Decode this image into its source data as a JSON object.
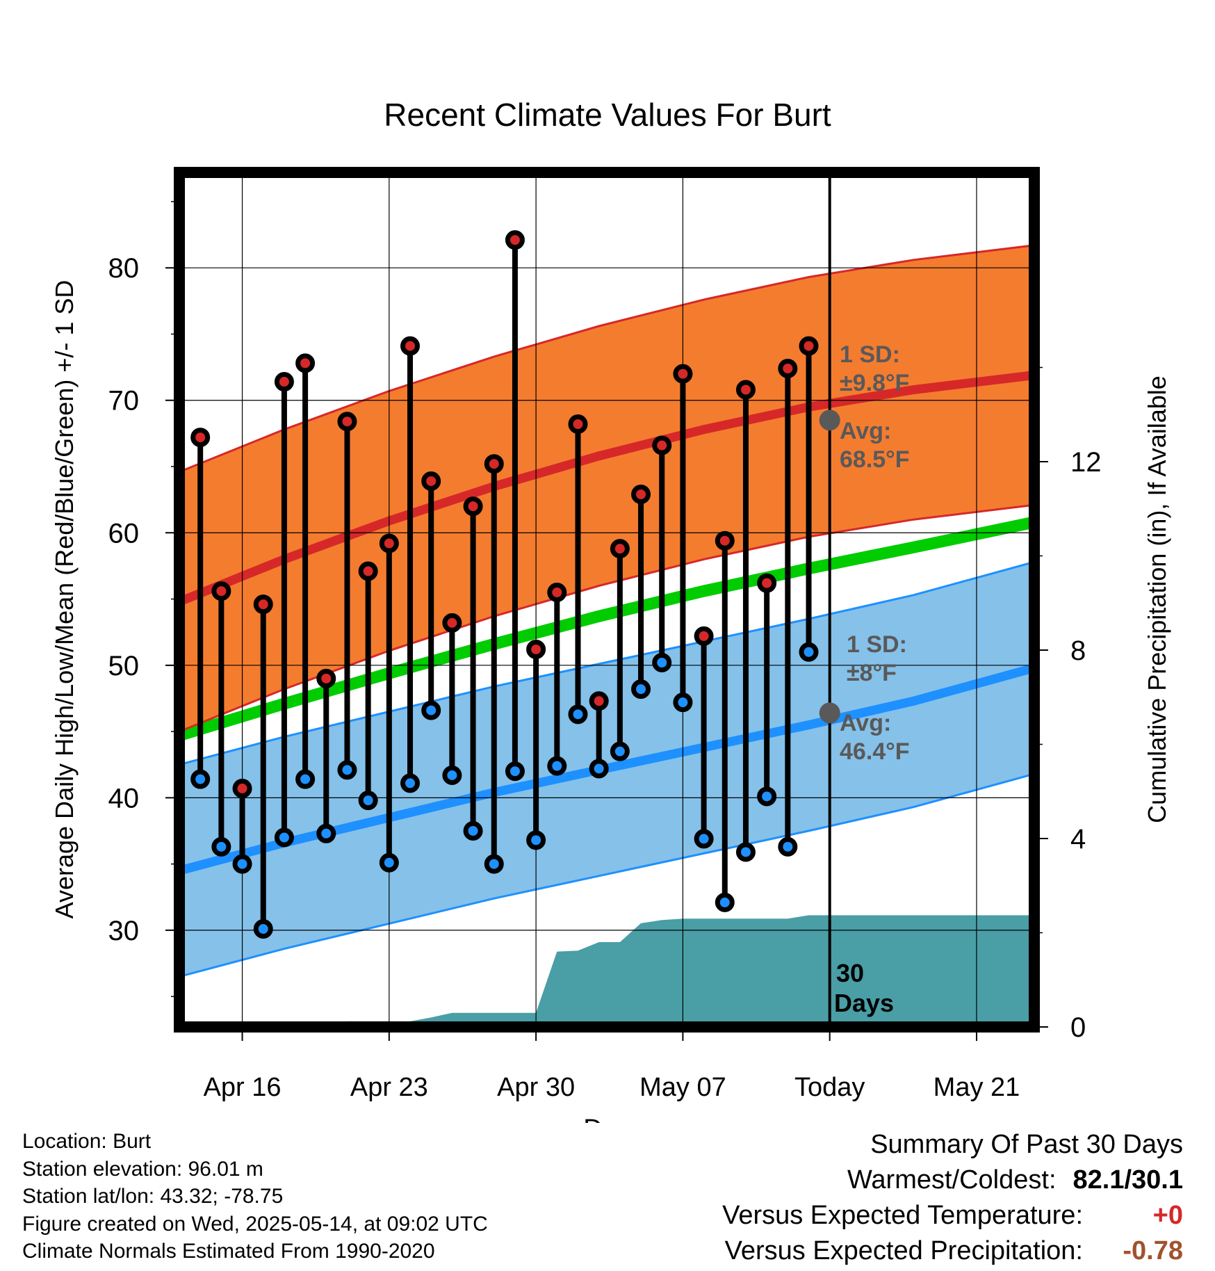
{
  "chart_data": {
    "type": "line",
    "title": "Recent Climate Values For Burt",
    "xlabel": "Day",
    "ylabel": "Average Daily High/Low/Mean (Red/Blue/Green) +/- 1 SD",
    "y2label": "Cumulative Precipitation (in), If Available",
    "x_tick_labels": [
      "Apr 16",
      "Apr 23",
      "Apr 30",
      "May 07",
      "Today",
      "May 21"
    ],
    "x_tick_days": [
      3,
      10,
      17,
      24,
      31,
      38
    ],
    "xlim_days": [
      0,
      40.75
    ],
    "ylim": [
      22.7,
      87.2
    ],
    "y_ticks": [
      30,
      40,
      50,
      60,
      70,
      80
    ],
    "y2lim": [
      0,
      18.14
    ],
    "y2_ticks": [
      0,
      4,
      8,
      12
    ],
    "grid": true,
    "today_day": 31,
    "daily_observations": {
      "day": [
        1,
        2,
        3,
        4,
        5,
        6,
        7,
        8,
        9,
        10,
        11,
        12,
        13,
        14,
        15,
        16,
        17,
        18,
        19,
        20,
        21,
        22,
        23,
        24,
        25,
        26,
        27,
        28,
        29,
        30
      ],
      "high": [
        67.2,
        55.6,
        40.7,
        54.6,
        71.4,
        72.8,
        49.0,
        68.4,
        57.1,
        59.2,
        74.1,
        63.9,
        53.2,
        62.0,
        65.2,
        82.1,
        51.2,
        55.5,
        68.2,
        47.3,
        58.8,
        62.9,
        66.6,
        72.0,
        52.2,
        59.4,
        70.8,
        56.2,
        72.4,
        74.1
      ],
      "low": [
        41.4,
        36.3,
        35.0,
        30.1,
        37.0,
        41.4,
        37.3,
        42.1,
        39.8,
        35.1,
        41.1,
        46.6,
        41.7,
        37.5,
        35.0,
        42.0,
        36.8,
        42.4,
        46.3,
        42.2,
        43.5,
        48.2,
        50.2,
        47.2,
        36.9,
        32.1,
        35.9,
        40.1,
        36.3,
        51.0
      ]
    },
    "normals": {
      "day": [
        0,
        5,
        10,
        15,
        20,
        25,
        30,
        35,
        40.75
      ],
      "mean": [
        44.7,
        47.1,
        49.4,
        51.6,
        53.7,
        55.6,
        57.3,
        58.9,
        60.8
      ],
      "high_avg": [
        54.8,
        58.0,
        60.9,
        63.5,
        65.8,
        67.8,
        69.5,
        70.8,
        71.9
      ],
      "high_sd": [
        9.8,
        9.8,
        9.8,
        9.8,
        9.8,
        9.8,
        9.8,
        9.8,
        9.8
      ],
      "low_avg": [
        34.5,
        36.6,
        38.5,
        40.4,
        42.1,
        43.8,
        45.5,
        47.3,
        49.8
      ],
      "low_sd": [
        8.0,
        8.0,
        8.0,
        8.0,
        8.0,
        8.0,
        8.0,
        8.0,
        8.0
      ]
    },
    "cumulative_precipitation": {
      "day": [
        0,
        6,
        7,
        8,
        11,
        12,
        13,
        17,
        18,
        19,
        20,
        21,
        22,
        23,
        24,
        29,
        30,
        40.75
      ],
      "inches": [
        0,
        0,
        0.05,
        0.12,
        0.12,
        0.2,
        0.3,
        0.3,
        1.6,
        1.62,
        1.8,
        1.8,
        2.2,
        2.27,
        2.3,
        2.3,
        2.37,
        2.37
      ]
    },
    "annotations": {
      "high_sd_label": "1 SD:",
      "high_sd_value": "±9.8°F",
      "high_avg_label": "Avg:",
      "high_avg_value": "68.5°F",
      "low_sd_label": "1 SD:",
      "low_sd_value": "±8°F",
      "low_avg_label": "Avg:",
      "low_avg_value": "46.4°F",
      "days_number": "30",
      "days_word": "Days"
    },
    "today_avg_high": 68.5,
    "today_avg_low": 46.4,
    "colors": {
      "high_band": "#f47c2f",
      "high_line": "#d62828",
      "low_band": "#85c1e9",
      "low_line": "#1e90ff",
      "mean_line": "#00cc00",
      "precip": "#4a9ea6",
      "high_marker": "#d62828",
      "low_marker": "#1e90ff",
      "annotation": "#595959"
    }
  },
  "footer": {
    "location": "Location: Burt",
    "elevation": "Station elevation: 96.01 m",
    "latlon": "Station lat/lon: 43.32; -78.75",
    "created": "Figure created on Wed, 2025-05-14, at 09:02 UTC",
    "normals": "Climate Normals Estimated From 1990-2020"
  },
  "summary": {
    "title": "Summary Of Past 30 Days",
    "warm_cold_label": "Warmest/Coldest:",
    "warm_cold_value": "82.1/30.1",
    "temp_label": "Versus Expected Temperature:",
    "temp_value": "+0",
    "temp_color": "#d62828",
    "precip_label": "Versus Expected Precipitation:",
    "precip_value": "-0.78",
    "precip_color": "#a0522d"
  }
}
